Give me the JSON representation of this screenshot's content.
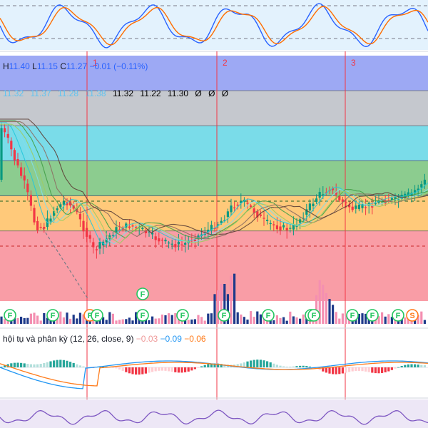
{
  "ohlc": {
    "h_label": "H",
    "h": "11.40",
    "l_label": "L",
    "l": "11.15",
    "c_label": "C",
    "c": "11.27",
    "change": "−0.01 (−0.11%)"
  },
  "ma_values": [
    "11.32",
    "11.22",
    "11.30",
    "Ø",
    "Ø",
    "Ø"
  ],
  "ma_values_faint": [
    "11.32",
    "11.37",
    "11.28",
    "11.38"
  ],
  "markers": [
    "1",
    "2",
    "3"
  ],
  "macd": {
    "label": "hội tụ và phân kỳ (12, 26, close, 9)",
    "v1": "−0.03",
    "v2": "−0.09",
    "v3": "−0.06"
  },
  "events": [
    {
      "t": 14,
      "text": "F"
    },
    {
      "t": 74,
      "text": "F"
    },
    {
      "t": 126,
      "text": "F",
      "outline": "#ff7b1a"
    },
    {
      "t": 136,
      "text": "F"
    },
    {
      "t": 200,
      "text": "F",
      "row": "high"
    },
    {
      "t": 200,
      "text": "F"
    },
    {
      "t": 256,
      "text": "F"
    },
    {
      "t": 314,
      "text": "F"
    },
    {
      "t": 376,
      "text": "F"
    },
    {
      "t": 436,
      "text": "F"
    },
    {
      "t": 440,
      "text": "F"
    },
    {
      "t": 494,
      "text": "F"
    },
    {
      "t": 522,
      "text": "F"
    },
    {
      "t": 558,
      "text": "F"
    },
    {
      "t": 578,
      "text": "S",
      "color": "#ff7b1a"
    }
  ],
  "chart_data": {
    "type": "candlestick",
    "colors": {
      "up": "#089981",
      "down": "#f23645"
    },
    "bands": [
      {
        "from": 11.6,
        "to": 11.75,
        "color": "#7c8cf0"
      },
      {
        "from": 11.45,
        "to": 11.6,
        "color": "#b2b5be"
      },
      {
        "from": 11.3,
        "to": 11.45,
        "color": "#4dd0e1"
      },
      {
        "from": 11.15,
        "to": 11.3,
        "color": "#66bb6a"
      },
      {
        "from": 11.0,
        "to": 11.15,
        "color": "#ffb74d"
      },
      {
        "from": 10.7,
        "to": 11.0,
        "color": "#f77c88"
      }
    ],
    "levels": [
      11.6,
      11.45,
      11.3,
      11.15,
      11.0
    ]
  }
}
